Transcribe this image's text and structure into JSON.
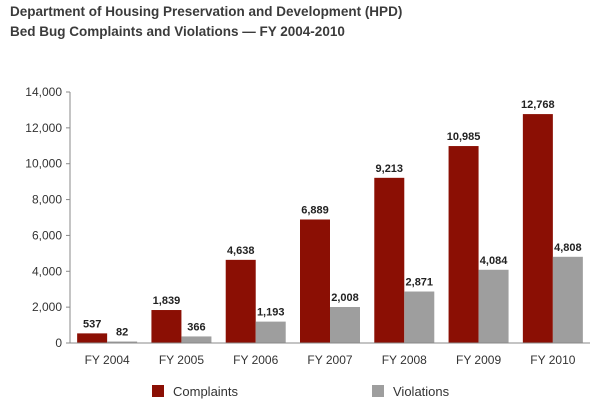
{
  "colors": {
    "complaints": "#8b0f04",
    "violations": "#9e9e9e",
    "axis": "#888888"
  },
  "chart_data": {
    "type": "bar",
    "title": "Department of Housing Preservation and Development (HPD)",
    "subtitle": "Bed Bug Complaints and Violations — FY 2004-2010",
    "categories": [
      "FY 2004",
      "FY 2005",
      "FY 2006",
      "FY 2007",
      "FY 2008",
      "FY 2009",
      "FY 2010"
    ],
    "series": [
      {
        "name": "Complaints",
        "values": [
          537,
          1839,
          4638,
          6889,
          9213,
          10985,
          12768
        ],
        "labels": [
          "537",
          "1,839",
          "4,638",
          "6,889",
          "9,213",
          "10,985",
          "12,768"
        ]
      },
      {
        "name": "Violations",
        "values": [
          82,
          366,
          1193,
          2008,
          2871,
          4084,
          4808
        ],
        "labels": [
          "82",
          "366",
          "1,193",
          "2,008",
          "2,871",
          "4,084",
          "4,808"
        ]
      }
    ],
    "ylim": [
      0,
      14000
    ],
    "yticks": [
      "0",
      "2,000",
      "4,000",
      "6,000",
      "8,000",
      "10,000",
      "12,000",
      "14,000"
    ],
    "grid": false,
    "legend": "bottom"
  }
}
